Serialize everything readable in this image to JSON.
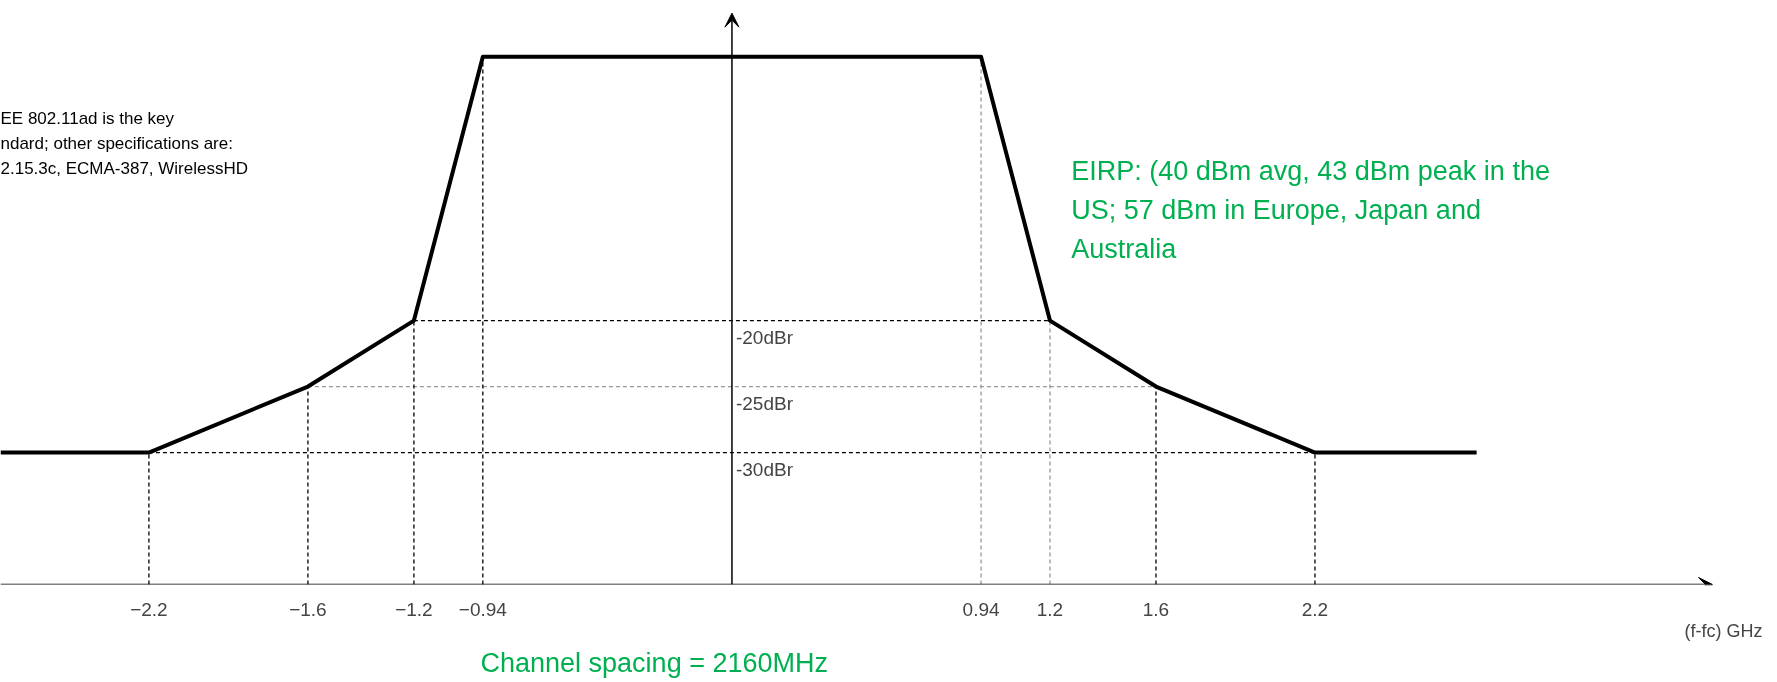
{
  "chart_data": {
    "type": "line",
    "x": [
      -2.76,
      -2.2,
      -1.6,
      -1.2,
      -0.94,
      0.94,
      1.2,
      1.6,
      2.2,
      2.81
    ],
    "series": [
      {
        "color": "#000000",
        "values": [
          -30,
          -30,
          -25,
          -20,
          0,
          0,
          -20,
          -25,
          -30,
          -30
        ]
      }
    ],
    "xlim": [
      -2.76,
      3.7
    ],
    "ylim": [
      -40,
      3.5
    ],
    "xticks": [
      -2.2,
      -1.6,
      -1.2,
      -0.94,
      0.94,
      1.2,
      1.6,
      2.2
    ],
    "yticks": [
      {
        "value": -20,
        "label": "-20dBr"
      },
      {
        "value": -25,
        "label": "-25dBr"
      },
      {
        "value": -30,
        "label": "-30dBr"
      }
    ],
    "xlabel": "(f-fc) GHz",
    "ref_lines": [
      {
        "axis": "y",
        "value": -20,
        "line_style": "dashed",
        "color": "#000000"
      },
      {
        "axis": "y",
        "value": -25,
        "line_style": "dashed",
        "color": "#999999"
      },
      {
        "axis": "y",
        "value": -30,
        "line_style": "dashed",
        "color": "#000000"
      },
      {
        "axis": "x",
        "value": -2.2,
        "line_style": "dashed",
        "color": "#000000"
      },
      {
        "axis": "x",
        "value": -1.6,
        "line_style": "dashed",
        "color": "#000000"
      },
      {
        "axis": "x",
        "value": -1.2,
        "line_style": "dashed",
        "color": "#000000"
      },
      {
        "axis": "x",
        "value": -0.94,
        "line_style": "dashed",
        "color": "#000000"
      },
      {
        "axis": "x",
        "value": 0.94,
        "line_style": "dashed",
        "color": "#999999"
      },
      {
        "axis": "x",
        "value": 1.2,
        "line_style": "dashed",
        "color": "#999999"
      },
      {
        "axis": "x",
        "value": 1.6,
        "line_style": "dashed",
        "color": "#000000"
      },
      {
        "axis": "x",
        "value": 2.2,
        "line_style": "dashed",
        "color": "#000000"
      }
    ],
    "annotations": [
      "EE  802.11ad is the key\nndard; other specifications are:\n2.15.3c, ECMA-387, WirelessHD",
      "EIRP: (40 dBm avg, 43 dBm peak in the\nUS; 57 dBm in Europe, Japan and\nAustralia",
      "Channel spacing = 2160MHz"
    ],
    "grid": false,
    "marker": "none",
    "line_style": "solid"
  }
}
